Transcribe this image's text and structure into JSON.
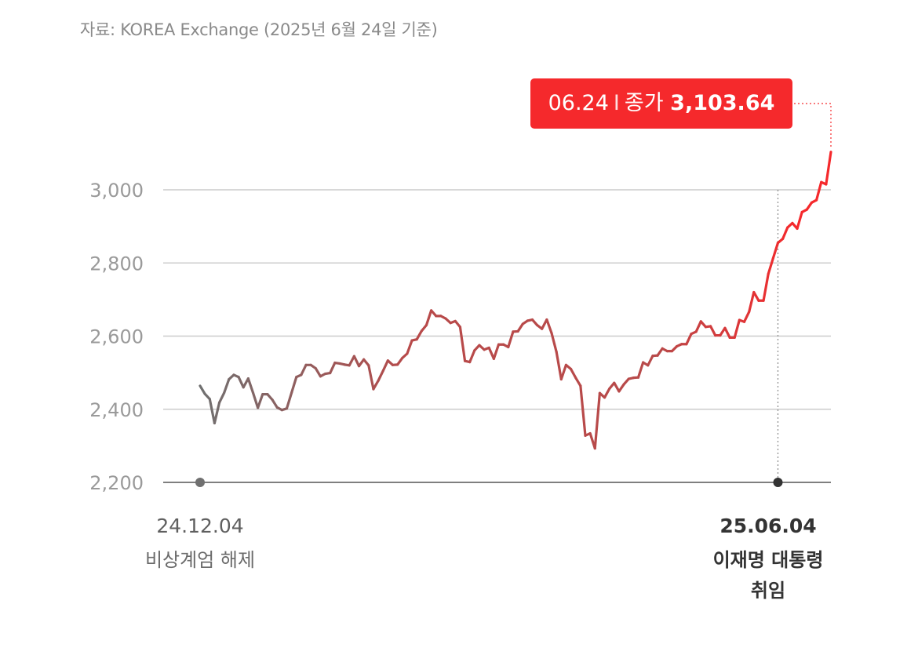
{
  "source_note": "자료: KOREA Exchange (2025년 6월 24일 기준)",
  "callout": {
    "date": "06.24",
    "separator": "I",
    "label": "종가",
    "value": "3,103.64"
  },
  "colors": {
    "early": "#707070",
    "mid": "#b84a4a",
    "late": "#f5292c",
    "grid": "#cccccc",
    "baseline": "#555555"
  },
  "annotations": {
    "start": {
      "date": "24.12.04",
      "text": "비상계엄 해제"
    },
    "end": {
      "date": "25.06.04",
      "text_line1": "이재명 대통령",
      "text_line2": "취임"
    }
  },
  "chart_data": {
    "type": "line",
    "title": "",
    "xlabel": "",
    "ylabel": "",
    "ylim": [
      2200,
      3100
    ],
    "yticks": [
      "2,200",
      "2,400",
      "2,600",
      "2,800",
      "3,000"
    ],
    "grid": true,
    "x_range": [
      "2024-12-04",
      "2025-06-24"
    ],
    "series": [
      {
        "values": [
          2464,
          2442,
          2428,
          2362,
          2418,
          2445,
          2482,
          2494,
          2488,
          2460,
          2484,
          2445,
          2404,
          2441,
          2441,
          2426,
          2405,
          2398,
          2402,
          2445,
          2488,
          2494,
          2521,
          2521,
          2512,
          2490,
          2497,
          2499,
          2527,
          2525,
          2522,
          2520,
          2545,
          2518,
          2536,
          2520,
          2455,
          2478,
          2505,
          2533,
          2521,
          2522,
          2540,
          2552,
          2588,
          2591,
          2614,
          2630,
          2670,
          2655,
          2655,
          2648,
          2636,
          2641,
          2625,
          2532,
          2529,
          2561,
          2575,
          2563,
          2568,
          2538,
          2577,
          2577,
          2570,
          2612,
          2613,
          2633,
          2642,
          2645,
          2630,
          2620,
          2645,
          2608,
          2557,
          2482,
          2521,
          2510,
          2486,
          2464,
          2328,
          2334,
          2293,
          2444,
          2432,
          2456,
          2472,
          2449,
          2468,
          2483,
          2486,
          2487,
          2528,
          2520,
          2546,
          2547,
          2566,
          2559,
          2559,
          2572,
          2578,
          2578,
          2606,
          2612,
          2640,
          2625,
          2627,
          2602,
          2602,
          2622,
          2596,
          2596,
          2644,
          2639,
          2666,
          2720,
          2697,
          2697,
          2770,
          2813,
          2855,
          2866,
          2897,
          2909,
          2894,
          2939,
          2946,
          2965,
          2972,
          3021,
          3015,
          3103.64
        ]
      }
    ]
  }
}
